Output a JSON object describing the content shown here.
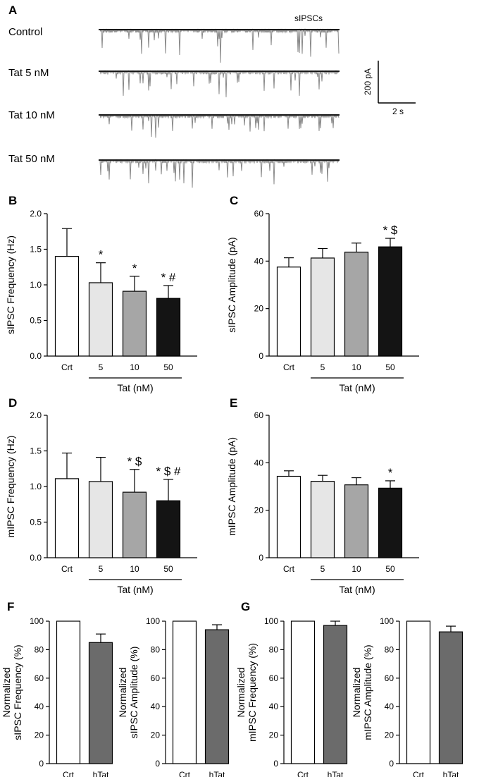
{
  "panel_a": {
    "letter": "A",
    "trace_label": "sIPSCs",
    "rows": [
      "Control",
      "Tat 5 nM",
      "Tat 10 nM",
      "Tat 50 nM"
    ],
    "scale_y": "200 pA",
    "scale_x": "2 s"
  },
  "chart_data": [
    {
      "id": "B",
      "letter": "B",
      "type": "bar",
      "categories": [
        "Crt",
        "5",
        "10",
        "50"
      ],
      "values": [
        1.4,
        1.03,
        0.91,
        0.81
      ],
      "errors": [
        0.39,
        0.28,
        0.21,
        0.18
      ],
      "colors": [
        "#ffffff",
        "#e6e6e6",
        "#a6a6a6",
        "#141414"
      ],
      "annotations": [
        "",
        "*",
        "*",
        "* #"
      ],
      "ylabel": "sIPSC Frequency (Hz)",
      "xlabel": "Tat (nM)",
      "ylim": [
        0,
        2.0
      ],
      "yticks": [
        "0.0",
        "0.5",
        "1.0",
        "1.5",
        "2.0"
      ]
    },
    {
      "id": "C",
      "letter": "C",
      "type": "bar",
      "categories": [
        "Crt",
        "5",
        "10",
        "50"
      ],
      "values": [
        37.5,
        41.3,
        43.8,
        46.0
      ],
      "errors": [
        3.9,
        4.0,
        3.8,
        3.6
      ],
      "colors": [
        "#ffffff",
        "#e6e6e6",
        "#a6a6a6",
        "#141414"
      ],
      "annotations": [
        "",
        "",
        "",
        "* $"
      ],
      "ylabel": "sIPSC Amplitude (pA)",
      "xlabel": "Tat (nM)",
      "ylim": [
        0,
        60
      ],
      "yticks": [
        "0",
        "20",
        "40",
        "60"
      ]
    },
    {
      "id": "D",
      "letter": "D",
      "type": "bar",
      "categories": [
        "Crt",
        "5",
        "10",
        "50"
      ],
      "values": [
        1.11,
        1.07,
        0.92,
        0.8
      ],
      "errors": [
        0.36,
        0.34,
        0.32,
        0.3
      ],
      "colors": [
        "#ffffff",
        "#e6e6e6",
        "#a6a6a6",
        "#141414"
      ],
      "annotations": [
        "",
        "",
        "* $",
        "* $ #"
      ],
      "ylabel": "mIPSC Frequency (Hz)",
      "xlabel": "Tat (nM)",
      "ylim": [
        0,
        2.0
      ],
      "yticks": [
        "0.0",
        "0.5",
        "1.0",
        "1.5",
        "2.0"
      ]
    },
    {
      "id": "E",
      "letter": "E",
      "type": "bar",
      "categories": [
        "Crt",
        "5",
        "10",
        "50"
      ],
      "values": [
        34.3,
        32.2,
        30.7,
        29.3
      ],
      "errors": [
        2.3,
        2.5,
        3.0,
        3.1
      ],
      "colors": [
        "#ffffff",
        "#e6e6e6",
        "#a6a6a6",
        "#141414"
      ],
      "annotations": [
        "",
        "",
        "",
        "*"
      ],
      "ylabel": "mIPSC Amplitude (pA)",
      "xlabel": "Tat (nM)",
      "ylim": [
        0,
        60
      ],
      "yticks": [
        "0",
        "20",
        "40",
        "60"
      ]
    },
    {
      "id": "F1",
      "letter": "F",
      "type": "bar",
      "categories": [
        "Crt",
        "hTat"
      ],
      "values": [
        100,
        85
      ],
      "errors": [
        0,
        6
      ],
      "colors": [
        "#ffffff",
        "#6b6b6b"
      ],
      "ylabel": [
        "Normalized",
        "sIPSC Frequency (%)"
      ],
      "ylim": [
        0,
        100
      ],
      "yticks": [
        "0",
        "20",
        "40",
        "60",
        "80",
        "100"
      ]
    },
    {
      "id": "F2",
      "type": "bar",
      "categories": [
        "Crt",
        "hTat"
      ],
      "values": [
        100,
        94
      ],
      "errors": [
        0,
        3.5
      ],
      "colors": [
        "#ffffff",
        "#6b6b6b"
      ],
      "ylabel": [
        "Normalized",
        "sIPSC Amplitude (%)"
      ],
      "ylim": [
        0,
        100
      ],
      "yticks": [
        "0",
        "20",
        "40",
        "60",
        "80",
        "100"
      ]
    },
    {
      "id": "G1",
      "letter": "G",
      "type": "bar",
      "categories": [
        "Crt",
        "hTat"
      ],
      "values": [
        100,
        97
      ],
      "errors": [
        0,
        3
      ],
      "colors": [
        "#ffffff",
        "#6b6b6b"
      ],
      "ylabel": [
        "Normalized",
        "mIPSC Frequency (%)"
      ],
      "ylim": [
        0,
        100
      ],
      "yticks": [
        "0",
        "20",
        "40",
        "60",
        "80",
        "100"
      ]
    },
    {
      "id": "G2",
      "type": "bar",
      "categories": [
        "Crt",
        "hTat"
      ],
      "values": [
        100,
        92.5
      ],
      "errors": [
        0,
        4
      ],
      "colors": [
        "#ffffff",
        "#6b6b6b"
      ],
      "ylabel": [
        "Normalized",
        "mIPSC Amplitude (%)"
      ],
      "ylim": [
        0,
        100
      ],
      "yticks": [
        "0",
        "20",
        "40",
        "60",
        "80",
        "100"
      ]
    }
  ]
}
